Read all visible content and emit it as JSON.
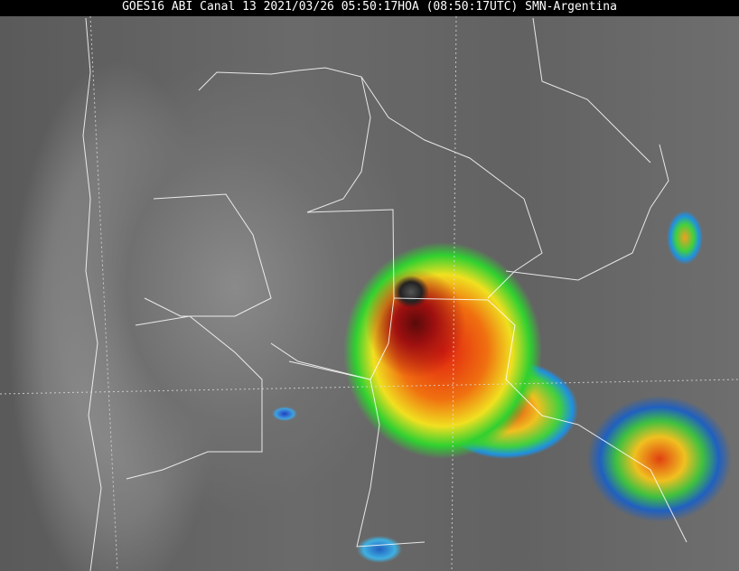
{
  "title": "GOES16 ABI Canal 13 2021/03/26 05:50:17HOA (08:50:17UTC) SMN-Argentina",
  "image": {
    "type": "infrared satellite image",
    "colors": {
      "background_gray": "#6a6a6a",
      "cold_core": "#5a0a0a",
      "red": "#e02010",
      "orange": "#f07010",
      "yellow": "#f0e020",
      "green": "#30d030",
      "blue": "#2090e0",
      "boundary": "#ffffff"
    }
  }
}
